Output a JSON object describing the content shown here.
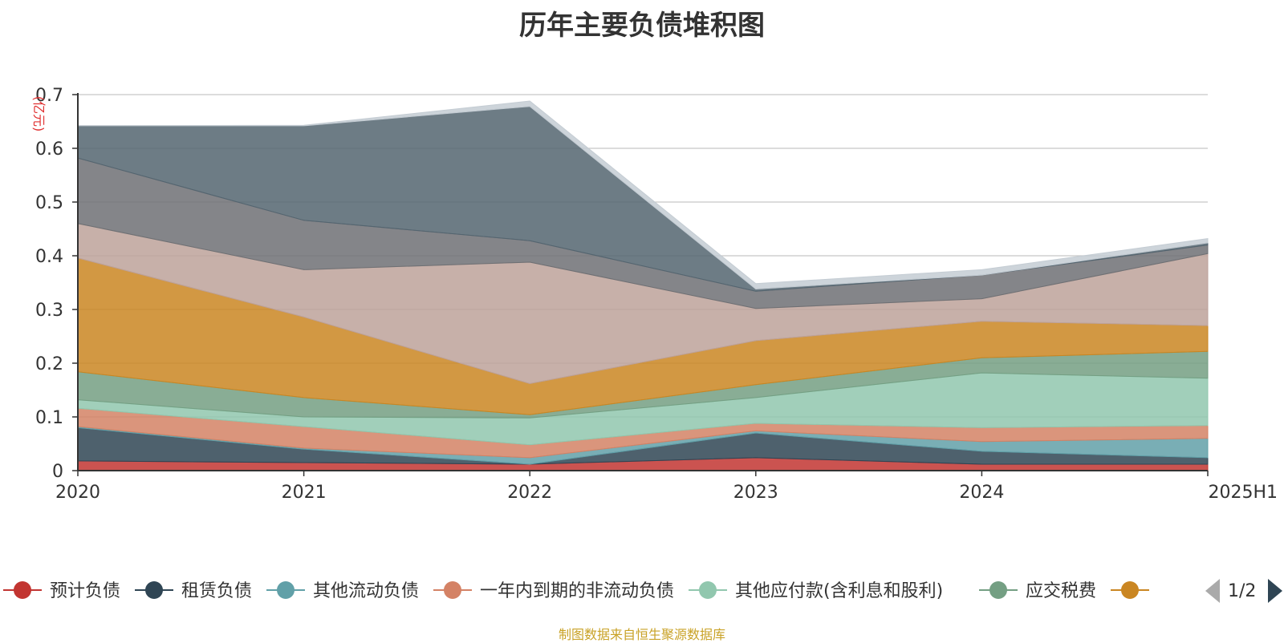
{
  "title": "历年主要负债堆积图",
  "source_note": "制图数据来自恒生聚源数据库",
  "legend_page": "1/2",
  "chart_data": {
    "type": "area",
    "stacked": true,
    "title": "历年主要负债堆积图",
    "ylabel": "(亿元)",
    "xlabel": "",
    "categories": [
      "2020",
      "2021",
      "2022",
      "2023",
      "2024",
      "2025H1"
    ],
    "ylim": [
      0,
      0.7
    ],
    "yticks": [
      "0",
      "0.1",
      "0.2",
      "0.3",
      "0.4",
      "0.5",
      "0.6",
      "0.7"
    ],
    "grid": true,
    "legend_position": "bottom",
    "series": [
      {
        "name": "预计负债",
        "color": "#c23531",
        "legend": true,
        "values": [
          0.018,
          0.015,
          0.012,
          0.024,
          0.012,
          0.012
        ]
      },
      {
        "name": "租赁负债",
        "color": "#2f4554",
        "legend": true,
        "values": [
          0.062,
          0.025,
          0.0,
          0.046,
          0.024,
          0.012
        ]
      },
      {
        "name": "其他流动负债",
        "color": "#61a0a8",
        "legend": true,
        "values": [
          0.002,
          0.002,
          0.012,
          0.004,
          0.018,
          0.036
        ]
      },
      {
        "name": "一年内到期的非流动负债",
        "color": "#d48265",
        "legend": true,
        "values": [
          0.034,
          0.04,
          0.024,
          0.014,
          0.026,
          0.024
        ]
      },
      {
        "name": "其他应付款(含利息和股利)",
        "color": "#91c7ae",
        "legend": true,
        "values": [
          0.016,
          0.018,
          0.05,
          0.048,
          0.102,
          0.088
        ]
      },
      {
        "name": "应交税费",
        "color": "#749f83",
        "legend": true,
        "values": [
          0.052,
          0.036,
          0.006,
          0.024,
          0.028,
          0.05
        ]
      },
      {
        "name": "",
        "color": "#ca8622",
        "legend": true,
        "values": [
          0.212,
          0.15,
          0.058,
          0.082,
          0.068,
          0.048
        ]
      },
      {
        "name": "",
        "color": "#bda29a",
        "legend": false,
        "values": [
          0.064,
          0.088,
          0.226,
          0.06,
          0.042,
          0.134
        ]
      },
      {
        "name": "",
        "color": "#6e7074",
        "legend": false,
        "values": [
          0.122,
          0.092,
          0.04,
          0.032,
          0.044,
          0.016
        ]
      },
      {
        "name": "",
        "color": "#546570",
        "legend": false,
        "values": [
          0.06,
          0.176,
          0.25,
          0.004,
          0.0,
          0.004
        ]
      },
      {
        "name": "",
        "color": "#c4ccd3",
        "legend": false,
        "values": [
          0.0,
          0.001,
          0.01,
          0.01,
          0.01,
          0.008
        ]
      }
    ]
  }
}
